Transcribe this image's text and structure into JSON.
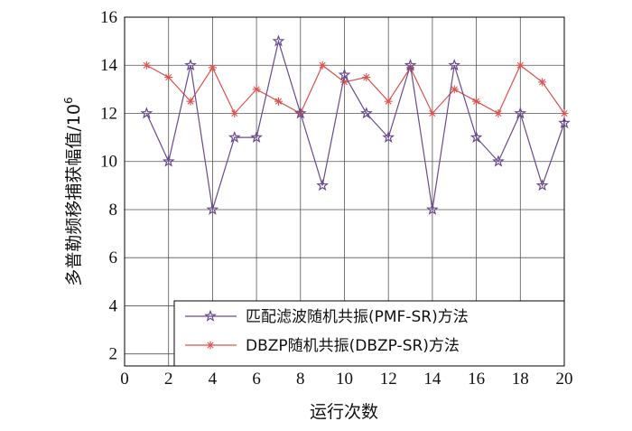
{
  "chart_data": {
    "type": "line",
    "xlabel": "运行次数",
    "ylabel": "多普勒频移捕获幅值/10",
    "ylabel_exponent": "6",
    "xlim": [
      0,
      20
    ],
    "ylim": [
      1.5,
      16
    ],
    "xticks": [
      0,
      2,
      4,
      6,
      8,
      10,
      12,
      14,
      16,
      18,
      20
    ],
    "yticks": [
      2,
      4,
      6,
      8,
      10,
      12,
      14,
      16
    ],
    "grid": true,
    "legend_position": "bottom-right",
    "series": [
      {
        "name": "匹配滤波随机共振(PMF-SR)方法",
        "color": "#6a4a8e",
        "marker": "star",
        "x": [
          1,
          2,
          3,
          4,
          5,
          6,
          7,
          8,
          9,
          10,
          11,
          12,
          13,
          14,
          15,
          16,
          17,
          18,
          19,
          20
        ],
        "y": [
          12,
          10,
          14,
          8,
          11,
          11,
          15,
          12,
          9,
          13.6,
          12,
          11,
          14,
          8,
          14,
          11,
          10,
          12,
          9,
          11.6
        ]
      },
      {
        "name": "DBZP随机共振(DBZP-SR)方法",
        "color": "#d9534f",
        "marker": "asterisk",
        "x": [
          1,
          2,
          3,
          4,
          5,
          6,
          7,
          8,
          9,
          10,
          11,
          12,
          13,
          14,
          15,
          16,
          17,
          18,
          19,
          20
        ],
        "y": [
          14,
          13.5,
          12.5,
          13.9,
          12,
          13,
          12.5,
          12,
          14,
          13.3,
          13.5,
          12.5,
          13.9,
          12,
          13,
          12.5,
          12,
          14,
          13.3,
          12
        ]
      }
    ]
  }
}
